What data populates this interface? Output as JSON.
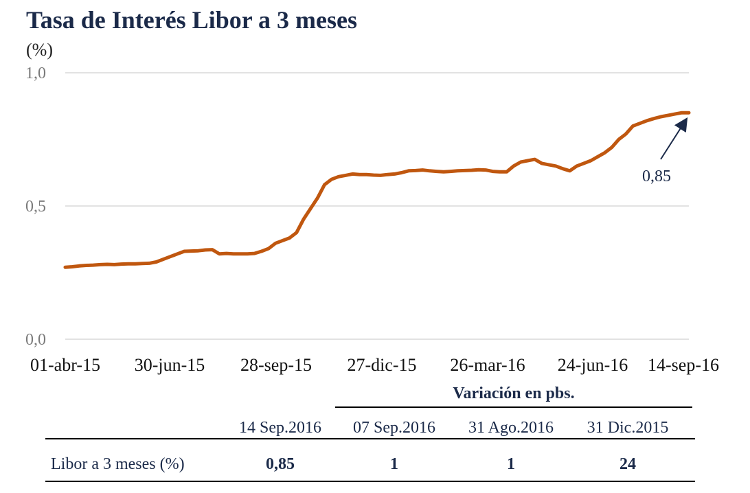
{
  "title": "Tasa de Interés Libor a 3 meses",
  "unit": "(%)",
  "colors": {
    "line": "#c0570f",
    "title": "#1b2a49",
    "arrow": "#1b2a49",
    "grid": "#d9d9d9"
  },
  "chart_data": {
    "type": "line",
    "title": "Tasa de Interés Libor a 3 meses",
    "ylabel": "(%)",
    "ylim": [
      0.0,
      1.0
    ],
    "yticks": [
      "0,0",
      "0,5",
      "1,0"
    ],
    "yticks_values": [
      0.0,
      0.5,
      1.0
    ],
    "xticks": [
      "01-abr-15",
      "30-jun-15",
      "28-sep-15",
      "27-dic-15",
      "26-mar-16",
      "24-jun-16",
      "14-sep-16"
    ],
    "grid": true,
    "series": [
      {
        "values": [
          0.27,
          0.272,
          0.275,
          0.277,
          0.278,
          0.28,
          0.281,
          0.28,
          0.282,
          0.283,
          0.283,
          0.284,
          0.285,
          0.29,
          0.3,
          0.31,
          0.32,
          0.33,
          0.331,
          0.332,
          0.335,
          0.336,
          0.32,
          0.322,
          0.32,
          0.32,
          0.32,
          0.322,
          0.33,
          0.34,
          0.36,
          0.37,
          0.38,
          0.4,
          0.45,
          0.49,
          0.53,
          0.58,
          0.6,
          0.61,
          0.615,
          0.62,
          0.618,
          0.618,
          0.616,
          0.615,
          0.618,
          0.62,
          0.625,
          0.632,
          0.633,
          0.635,
          0.632,
          0.63,
          0.628,
          0.63,
          0.632,
          0.633,
          0.634,
          0.636,
          0.635,
          0.63,
          0.628,
          0.628,
          0.65,
          0.665,
          0.67,
          0.675,
          0.66,
          0.655,
          0.65,
          0.64,
          0.632,
          0.65,
          0.66,
          0.67,
          0.685,
          0.7,
          0.72,
          0.75,
          0.77,
          0.8,
          0.81,
          0.82,
          0.828,
          0.835,
          0.84,
          0.845,
          0.85,
          0.85
        ]
      }
    ],
    "annotations": [
      {
        "text": "0,85",
        "value": 0.85
      }
    ]
  },
  "table": {
    "group_header": "Variación en pbs.",
    "columns": [
      "14 Sep.2016",
      "07 Sep.2016",
      "31 Ago.2016",
      "31 Dic.2015"
    ],
    "row": {
      "label": "Libor a 3 meses (%)",
      "values": [
        "0,85",
        "1",
        "1",
        "24"
      ]
    }
  }
}
